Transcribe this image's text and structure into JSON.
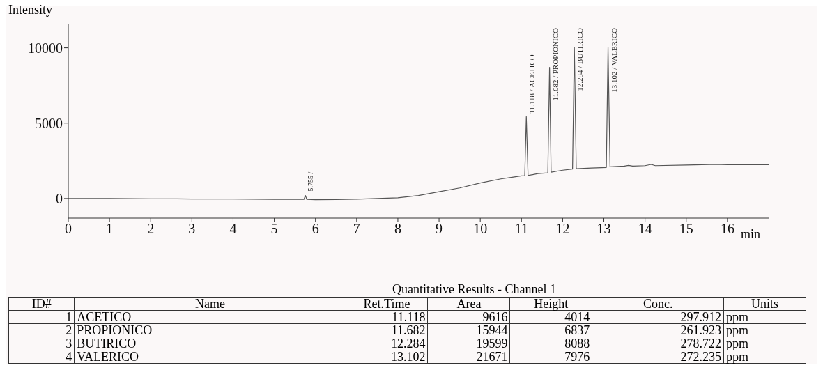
{
  "chart_data": {
    "type": "line",
    "ylabel": "Intensity",
    "xlabel": "min",
    "x": [
      0,
      1,
      2,
      3,
      4,
      5,
      5.72,
      5.755,
      5.79,
      6,
      6.5,
      7,
      7.5,
      8,
      8.5,
      9,
      9.5,
      10,
      10.5,
      11,
      11.08,
      11.118,
      11.16,
      11.4,
      11.64,
      11.682,
      11.72,
      12,
      12.24,
      12.284,
      12.33,
      12.7,
      13.06,
      13.102,
      13.15,
      13.5,
      13.6,
      13.7,
      14,
      14.15,
      14.25,
      15,
      15.7,
      16,
      17
    ],
    "series": [
      {
        "color": "#555555",
        "values": [
          0,
          0,
          -20,
          -30,
          -40,
          -60,
          -60,
          200,
          -60,
          -80,
          -70,
          -50,
          0,
          50,
          200,
          450,
          700,
          1030,
          1300,
          1500,
          1520,
          5430,
          1530,
          1650,
          1700,
          8700,
          1750,
          1880,
          1950,
          10040,
          1980,
          2020,
          2060,
          10040,
          2100,
          2150,
          2200,
          2150,
          2180,
          2260,
          2180,
          2220,
          2260,
          2240,
          2240
        ]
      }
    ],
    "xlim": [
      0,
      17
    ],
    "xticks": [
      0,
      1,
      2,
      3,
      4,
      5,
      6,
      7,
      8,
      9,
      10,
      11,
      12,
      13,
      14,
      15,
      16
    ],
    "ylim": [
      -1300,
      11600
    ],
    "yticks": [
      0,
      5000,
      10000
    ],
    "grid": false,
    "legend": false,
    "marker": "none",
    "line_style": "solid",
    "annotations": [
      {
        "text": "5.755 /",
        "x": 5.755,
        "y": 200
      },
      {
        "text": "11.118 / ACETICO",
        "x": 11.118,
        "y": 5430
      },
      {
        "text": "11.682 / PROPIONICO",
        "x": 11.682,
        "y": 8700
      },
      {
        "text": "12.284 / BUTIRICO",
        "x": 12.284,
        "y": 10040
      },
      {
        "text": "13.102 / VALERICO",
        "x": 13.102,
        "y": 10040
      },
      "Quantitative Results - Channel 1",
      "ID#",
      "Name",
      "Ret.Time",
      "Area",
      "Height",
      "Conc.",
      "Units",
      "1",
      "ACETICO",
      "11.118",
      "9616",
      "4014",
      "297.912",
      "ppm",
      "2",
      "PROPIONICO",
      "11.682",
      "15944",
      "6837",
      "261.923",
      "ppm",
      "3",
      "BUTIRICO",
      "12.284",
      "19599",
      "8088",
      "278.722",
      "ppm",
      "4",
      "VALERICO",
      "13.102",
      "21671",
      "7976",
      "272.235",
      "ppm"
    ]
  }
}
